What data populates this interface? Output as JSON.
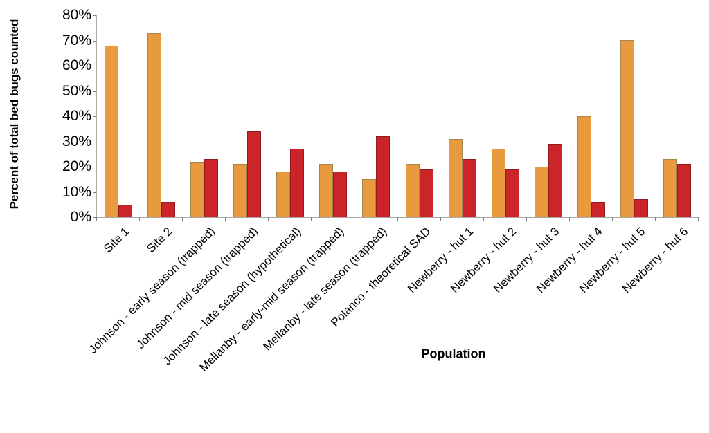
{
  "chart_data": {
    "type": "bar",
    "title": "",
    "xlabel": "Population",
    "ylabel": "Percent of total bed bugs counted",
    "ylim": [
      0,
      80
    ],
    "grid": "off",
    "legend": "none",
    "y_ticks": [
      {
        "value": 0,
        "label": "0%"
      },
      {
        "value": 10,
        "label": "10%"
      },
      {
        "value": 20,
        "label": "20%"
      },
      {
        "value": 30,
        "label": "30%"
      },
      {
        "value": 40,
        "label": "40%"
      },
      {
        "value": 50,
        "label": "50%"
      },
      {
        "value": 60,
        "label": "60%"
      },
      {
        "value": 70,
        "label": "70%"
      },
      {
        "value": 80,
        "label": "80%"
      }
    ],
    "categories": [
      "Site 1",
      "Site 2",
      "Johnson - early season (trapped)",
      "Johnson - mid season (trapped)",
      "Johnson - late season (hypothetical)",
      "Mellanby - early-mid season (trapped)",
      "Mellanby - late season (trapped)",
      "Polanco - theoretical SAD",
      "Newberry - hut 1",
      "Newberry - hut 2",
      "Newberry - hut 3",
      "Newberry - hut 4",
      "Newberry - hut 5",
      "Newberry - hut 6"
    ],
    "series": [
      {
        "name": "orange",
        "color": "#EA9A3E",
        "border_color": "#A5854C",
        "values": [
          68,
          73,
          22,
          21,
          18,
          21,
          15,
          21,
          31,
          27,
          20,
          40,
          70,
          23
        ]
      },
      {
        "name": "red",
        "color": "#CC2529",
        "border_color": "#941B1E",
        "values": [
          5,
          6,
          23,
          34,
          27,
          18,
          32,
          19,
          23,
          19,
          29,
          6,
          7,
          21
        ]
      }
    ],
    "axis_color": "#a8a8a8"
  }
}
